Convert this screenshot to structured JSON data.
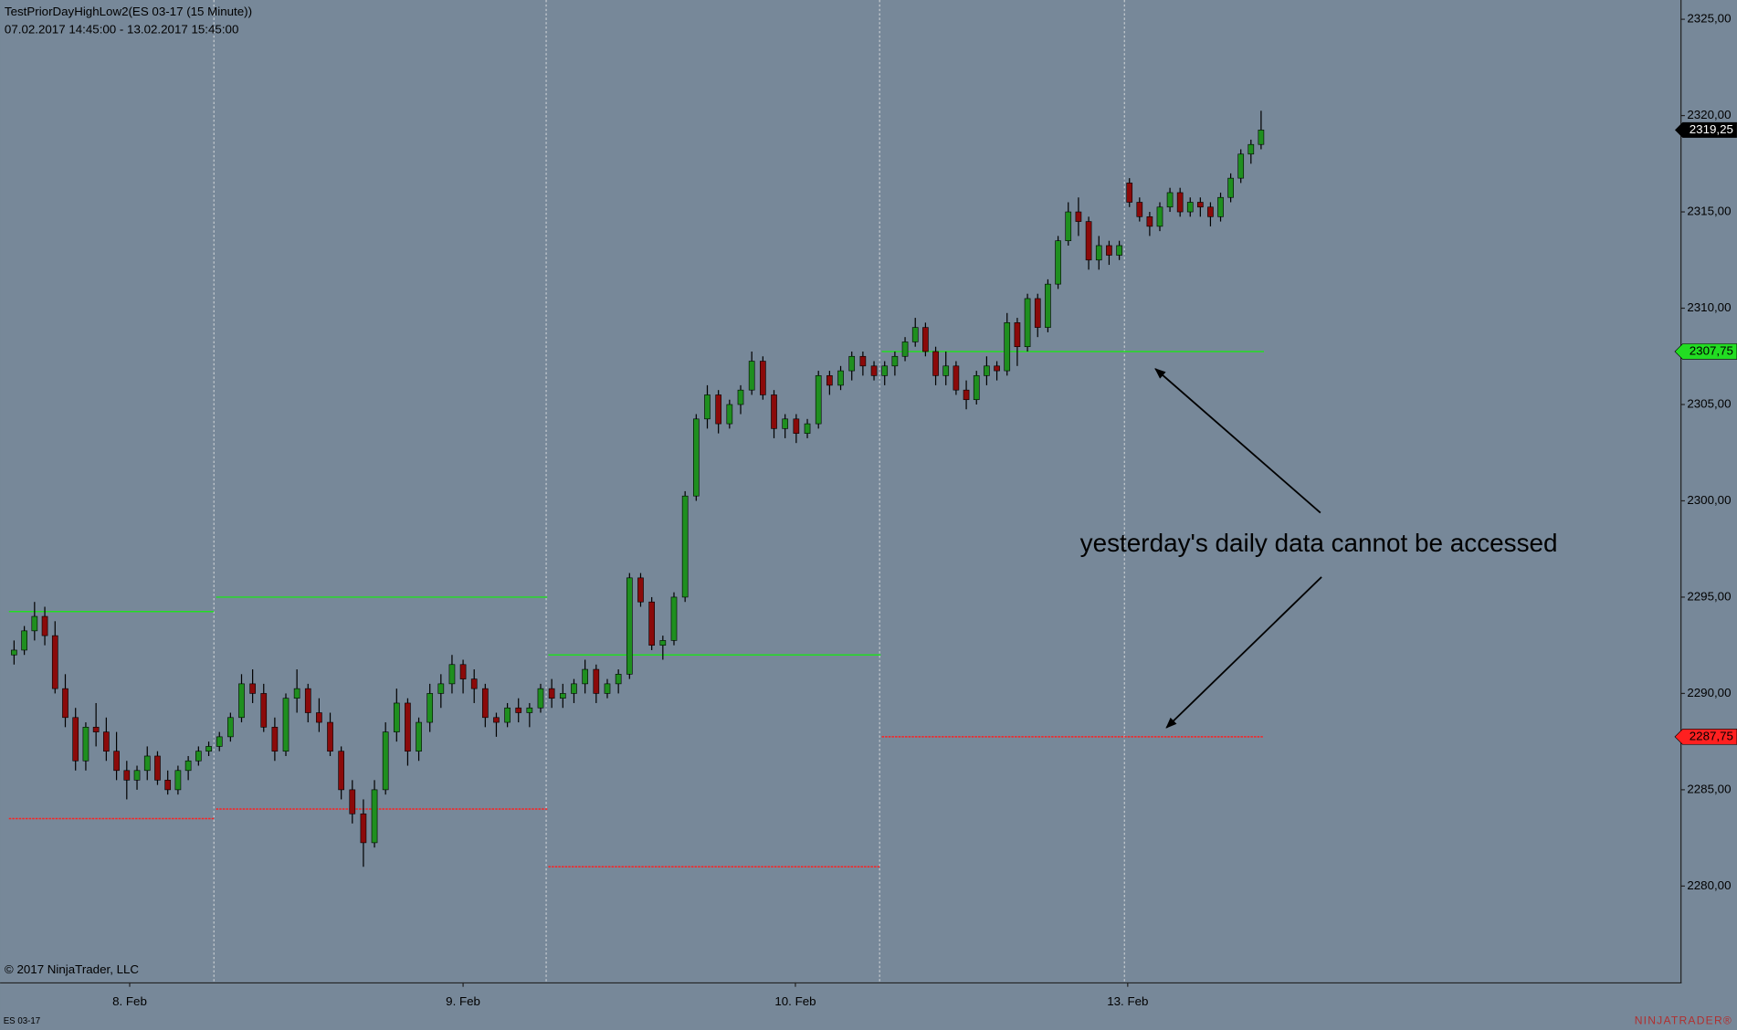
{
  "chart_data": {
    "type": "candlestick",
    "title": "TestPriorDayHighLow2(ES 03-17 (15 Minute))",
    "subtitle": "07.02.2017 14:45:00 - 13.02.2017 15:45:00",
    "copyright": "© 2017 NinjaTrader, LLC",
    "instrument": "ES 03-17",
    "logo": "NINJATRADER®",
    "annotation": "yesterday's daily data cannot be accessed",
    "up_color": "#1f8f1f",
    "down_color": "#8b0a0a",
    "high_color": "#22dd22",
    "low_color": "#ff2020",
    "ylim": [
      2275,
      2326
    ],
    "yticks": [
      {
        "value": 2280,
        "label": "2280,00"
      },
      {
        "value": 2285,
        "label": "2285,00"
      },
      {
        "value": 2290,
        "label": "2290,00"
      },
      {
        "value": 2295,
        "label": "2295,00"
      },
      {
        "value": 2300,
        "label": "2300,00"
      },
      {
        "value": 2305,
        "label": "2305,00"
      },
      {
        "value": 2310,
        "label": "2310,00"
      },
      {
        "value": 2315,
        "label": "2315,00"
      },
      {
        "value": 2320,
        "label": "2320,00"
      },
      {
        "value": 2325,
        "label": "2325,00"
      }
    ],
    "dates": [
      "8. Feb",
      "9. Feb",
      "10. Feb",
      "13. Feb"
    ],
    "last_price": {
      "value": 2319.25,
      "label": "2319,25"
    },
    "levels": [
      {
        "high": 2294.25,
        "low": 2283.5
      },
      {
        "high": 2295,
        "low": 2284
      },
      {
        "high": 2292,
        "low": 2281
      },
      {
        "high": {
          "value": 2307.75,
          "label": "2307,75"
        },
        "low": {
          "value": 2287.75,
          "label": "2287,75"
        }
      }
    ],
    "sessions": [
      {
        "candles": [
          [
            2292,
            2292.75,
            2291.5,
            2292.25
          ],
          [
            2292.25,
            2293.5,
            2292,
            2293.25
          ],
          [
            2293.25,
            2294.75,
            2292.75,
            2294
          ],
          [
            2294,
            2294.5,
            2292.5,
            2293
          ],
          [
            2293,
            2293.75,
            2290,
            2290.25
          ],
          [
            2290.25,
            2291,
            2288.25,
            2288.75
          ],
          [
            2288.75,
            2289.25,
            2286,
            2286.5
          ],
          [
            2286.5,
            2288.5,
            2286,
            2288.25
          ],
          [
            2288.25,
            2289.5,
            2287.25,
            2288
          ],
          [
            2288,
            2288.75,
            2286.5,
            2287
          ],
          [
            2287,
            2288,
            2285.5,
            2286
          ],
          [
            2286,
            2286.5,
            2284.5,
            2285.5
          ],
          [
            2285.5,
            2286.25,
            2285,
            2286
          ],
          [
            2286,
            2287.25,
            2285.5,
            2286.75
          ],
          [
            2286.75,
            2287,
            2285.25,
            2285.5
          ],
          [
            2285.5,
            2286,
            2284.75,
            2285
          ],
          [
            2285,
            2286.25,
            2284.75,
            2286
          ],
          [
            2286,
            2286.75,
            2285.5,
            2286.5
          ],
          [
            2286.5,
            2287.25,
            2286.25,
            2287
          ],
          [
            2287,
            2287.5,
            2286.75,
            2287.25
          ]
        ]
      },
      {
        "candles": [
          [
            2287.25,
            2288,
            2287,
            2287.75
          ],
          [
            2287.75,
            2289,
            2287.5,
            2288.75
          ],
          [
            2288.75,
            2291,
            2288.5,
            2290.5
          ],
          [
            2290.5,
            2291.25,
            2289.5,
            2290
          ],
          [
            2290,
            2290.5,
            2288,
            2288.25
          ],
          [
            2288.25,
            2288.75,
            2286.5,
            2287
          ],
          [
            2287,
            2290,
            2286.75,
            2289.75
          ],
          [
            2289.75,
            2291.25,
            2289,
            2290.25
          ],
          [
            2290.25,
            2290.5,
            2288.5,
            2289
          ],
          [
            2289,
            2289.75,
            2288,
            2288.5
          ],
          [
            2288.5,
            2289,
            2286.75,
            2287
          ],
          [
            2287,
            2287.25,
            2284.5,
            2285
          ],
          [
            2285,
            2285.5,
            2283.25,
            2283.75
          ],
          [
            2283.75,
            2284.5,
            2281,
            2282.25
          ],
          [
            2282.25,
            2285.5,
            2282,
            2285
          ],
          [
            2285,
            2288.5,
            2284.75,
            2288
          ],
          [
            2288,
            2290.25,
            2287.5,
            2289.5
          ],
          [
            2289.5,
            2289.75,
            2286.25,
            2287
          ],
          [
            2287,
            2288.75,
            2286.5,
            2288.5
          ],
          [
            2288.5,
            2290.5,
            2288,
            2290
          ],
          [
            2290,
            2291,
            2289.25,
            2290.5
          ],
          [
            2290.5,
            2292,
            2290,
            2291.5
          ],
          [
            2291.5,
            2291.75,
            2290,
            2290.75
          ],
          [
            2290.75,
            2291.25,
            2289.5,
            2290.25
          ],
          [
            2290.25,
            2290.5,
            2288.25,
            2288.75
          ],
          [
            2288.75,
            2289,
            2287.75,
            2288.5
          ],
          [
            2288.5,
            2289.5,
            2288.25,
            2289.25
          ],
          [
            2289.25,
            2289.75,
            2288.5,
            2289
          ],
          [
            2289,
            2289.5,
            2288.25,
            2289.25
          ],
          [
            2289.25,
            2290.5,
            2289,
            2290.25
          ]
        ]
      },
      {
        "candles": [
          [
            2290.25,
            2290.75,
            2289.25,
            2289.75
          ],
          [
            2289.75,
            2290.5,
            2289.25,
            2290
          ],
          [
            2290,
            2290.75,
            2289.5,
            2290.5
          ],
          [
            2290.5,
            2291.75,
            2290,
            2291.25
          ],
          [
            2291.25,
            2291.5,
            2289.5,
            2290
          ],
          [
            2290,
            2290.75,
            2289.75,
            2290.5
          ],
          [
            2290.5,
            2291.25,
            2290,
            2291
          ],
          [
            2291,
            2296.25,
            2290.75,
            2296
          ],
          [
            2296,
            2296.25,
            2294.5,
            2294.75
          ],
          [
            2294.75,
            2295,
            2292.25,
            2292.5
          ],
          [
            2292.5,
            2293,
            2291.75,
            2292.75
          ],
          [
            2292.75,
            2295.25,
            2292.5,
            2295
          ],
          [
            2295,
            2300.5,
            2294.75,
            2300.25
          ],
          [
            2300.25,
            2304.5,
            2300,
            2304.25
          ],
          [
            2304.25,
            2306,
            2303.75,
            2305.5
          ],
          [
            2305.5,
            2305.75,
            2303.5,
            2304
          ],
          [
            2304,
            2305.25,
            2303.75,
            2305
          ],
          [
            2305,
            2306,
            2304.5,
            2305.75
          ],
          [
            2305.75,
            2307.75,
            2305.5,
            2307.25
          ],
          [
            2307.25,
            2307.5,
            2305.25,
            2305.5
          ],
          [
            2305.5,
            2305.75,
            2303.25,
            2303.75
          ],
          [
            2303.75,
            2304.5,
            2303.25,
            2304.25
          ],
          [
            2304.25,
            2304.5,
            2303,
            2303.5
          ],
          [
            2303.5,
            2304.25,
            2303.25,
            2304
          ],
          [
            2304,
            2306.75,
            2303.75,
            2306.5
          ],
          [
            2306.5,
            2306.75,
            2305.5,
            2306
          ],
          [
            2306,
            2307,
            2305.75,
            2306.75
          ],
          [
            2306.75,
            2307.75,
            2306.25,
            2307.5
          ],
          [
            2307.5,
            2307.75,
            2306.5,
            2307
          ],
          [
            2307,
            2307.25,
            2306.25,
            2306.5
          ]
        ]
      },
      {
        "candles": [
          [
            2306.5,
            2307.25,
            2306,
            2307
          ],
          [
            2307,
            2307.75,
            2306.5,
            2307.5
          ],
          [
            2307.5,
            2308.5,
            2307.25,
            2308.25
          ],
          [
            2308.25,
            2309.5,
            2308,
            2309
          ],
          [
            2309,
            2309.25,
            2307.5,
            2307.75
          ],
          [
            2307.75,
            2308,
            2306,
            2306.5
          ],
          [
            2306.5,
            2307.75,
            2306,
            2307
          ],
          [
            2307,
            2307.25,
            2305.5,
            2305.75
          ],
          [
            2305.75,
            2306.25,
            2304.75,
            2305.25
          ],
          [
            2305.25,
            2306.75,
            2305,
            2306.5
          ],
          [
            2306.5,
            2307.5,
            2306,
            2307
          ],
          [
            2307,
            2307.25,
            2306.25,
            2306.75
          ],
          [
            2306.75,
            2309.75,
            2306.5,
            2309.25
          ],
          [
            2309.25,
            2309.5,
            2307,
            2308
          ],
          [
            2308,
            2310.75,
            2307.75,
            2310.5
          ],
          [
            2310.5,
            2310.75,
            2308.5,
            2309
          ],
          [
            2309,
            2311.5,
            2308.75,
            2311.25
          ],
          [
            2311.25,
            2313.75,
            2311,
            2313.5
          ],
          [
            2313.5,
            2315.5,
            2313.25,
            2315
          ],
          [
            2315,
            2315.75,
            2313.75,
            2314.5
          ],
          [
            2314.5,
            2314.75,
            2312,
            2312.5
          ],
          [
            2312.5,
            2313.75,
            2312,
            2313.25
          ],
          [
            2313.25,
            2313.5,
            2312.25,
            2312.75
          ],
          [
            2312.75,
            2313.5,
            2312.5,
            2313.25
          ]
        ]
      },
      {
        "candles": [
          [
            2316.5,
            2316.75,
            2315.25,
            2315.5
          ],
          [
            2315.5,
            2315.75,
            2314.5,
            2314.75
          ],
          [
            2314.75,
            2315,
            2313.75,
            2314.25
          ],
          [
            2314.25,
            2315.5,
            2314,
            2315.25
          ],
          [
            2315.25,
            2316.25,
            2315,
            2316
          ],
          [
            2316,
            2316.25,
            2314.75,
            2315
          ],
          [
            2315,
            2315.75,
            2314.75,
            2315.5
          ],
          [
            2315.5,
            2315.75,
            2314.75,
            2315.25
          ],
          [
            2315.25,
            2315.5,
            2314.25,
            2314.75
          ],
          [
            2314.75,
            2316,
            2314.5,
            2315.75
          ],
          [
            2315.75,
            2317,
            2315.5,
            2316.75
          ],
          [
            2316.75,
            2318.25,
            2316.5,
            2318
          ],
          [
            2318,
            2318.75,
            2317.5,
            2318.5
          ],
          [
            2318.5,
            2320.25,
            2318.25,
            2319.25
          ]
        ]
      }
    ]
  }
}
